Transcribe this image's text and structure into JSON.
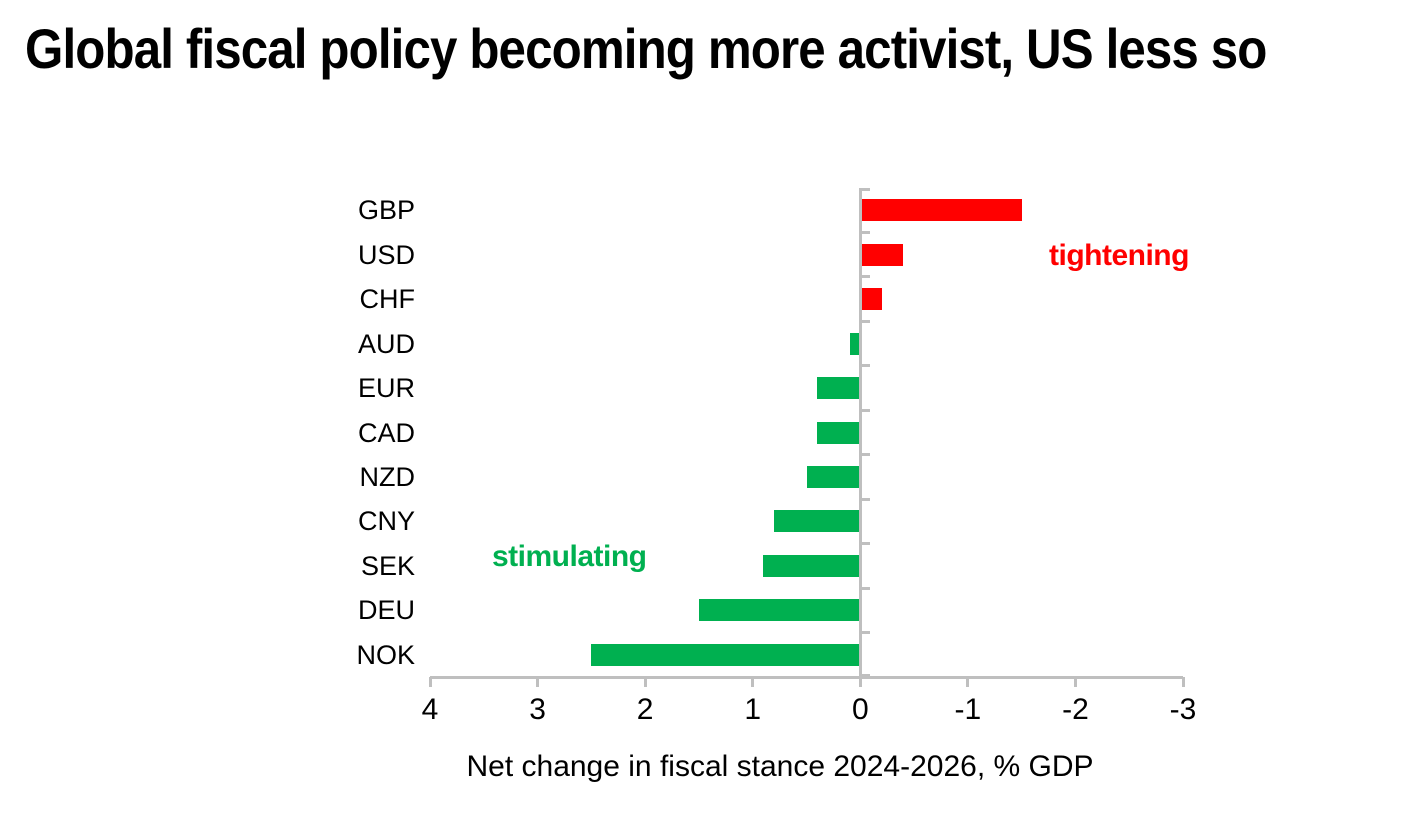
{
  "title": "Global fiscal policy becoming more activist, US less so",
  "chart_data": {
    "type": "bar",
    "orientation": "horizontal",
    "title": "Global fiscal policy becoming more activist, US less so",
    "categories": [
      "GBP",
      "USD",
      "CHF",
      "AUD",
      "EUR",
      "CAD",
      "NZD",
      "CNY",
      "SEK",
      "DEU",
      "NOK"
    ],
    "values": [
      -1.5,
      -0.4,
      -0.2,
      0.1,
      0.4,
      0.4,
      0.5,
      0.8,
      0.9,
      1.5,
      2.5
    ],
    "xlabel": "Net change in fiscal stance 2024-2026, % GDP",
    "x_ticks": [
      "4",
      "3",
      "2",
      "1",
      "0",
      "-1",
      "-2",
      "-3"
    ],
    "xlim": [
      4,
      -3
    ],
    "x_axis_reversed": true,
    "grid": false,
    "legend": false,
    "annotations": [
      {
        "text": "tightening",
        "color": "#FF0000"
      },
      {
        "text": "stimulating",
        "color": "#00B050"
      }
    ],
    "colors": {
      "positive_bar": "#00B050",
      "negative_bar": "#FF0000",
      "axis": "#BFBFBF",
      "text": "#000000"
    }
  }
}
